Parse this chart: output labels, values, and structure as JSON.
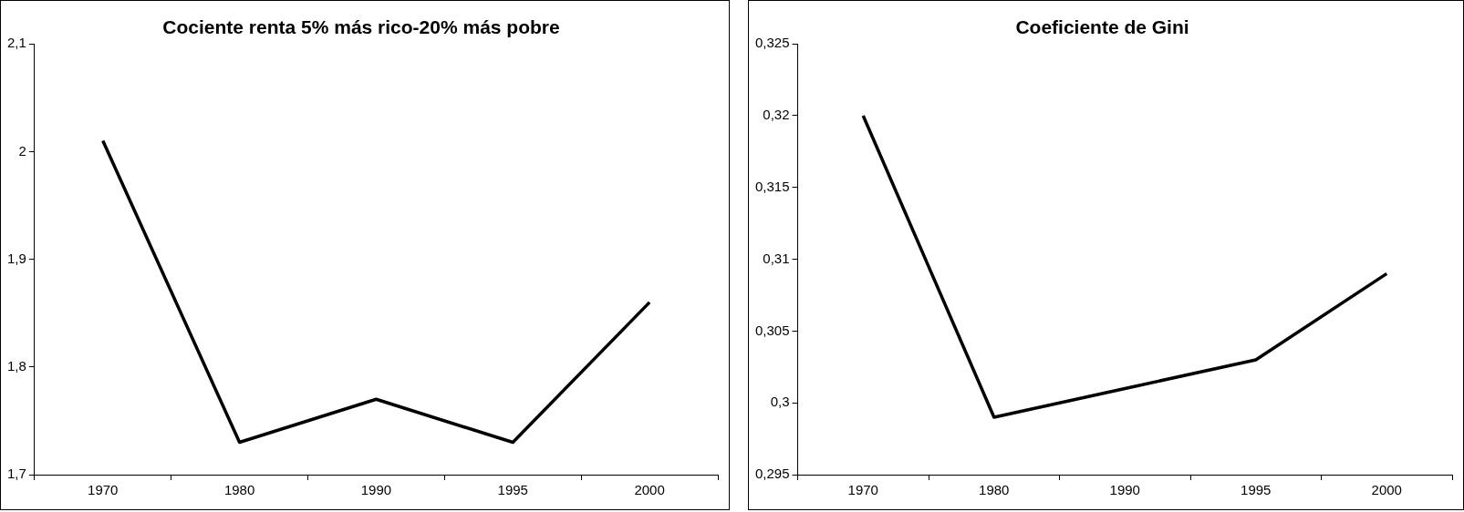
{
  "chart_data": [
    {
      "type": "line",
      "title": "Cociente renta 5% más rico-20% más pobre",
      "categories": [
        "1970",
        "1980",
        "1990",
        "1995",
        "2000"
      ],
      "series": [
        {
          "color": "#000000",
          "values": [
            2.01,
            1.73,
            1.77,
            1.73,
            1.86
          ]
        }
      ],
      "ylim": [
        1.7,
        2.1
      ],
      "yticks": [
        {
          "value": 1.7,
          "label": "1,7"
        },
        {
          "value": 1.8,
          "label": "1,8"
        },
        {
          "value": 1.9,
          "label": "1,9"
        },
        {
          "value": 2,
          "label": "2"
        },
        {
          "value": 2.1,
          "label": "2,1"
        }
      ],
      "grid": false,
      "legend": false,
      "marker": "none",
      "line_style": "solid"
    },
    {
      "type": "line",
      "title": "Coeficiente de Gini",
      "categories": [
        "1970",
        "1980",
        "1990",
        "1995",
        "2000"
      ],
      "series": [
        {
          "color": "#000000",
          "values": [
            0.32,
            0.299,
            0.301,
            0.303,
            0.309
          ]
        }
      ],
      "ylim": [
        0.295,
        0.325
      ],
      "yticks": [
        {
          "value": 0.295,
          "label": "0,295"
        },
        {
          "value": 0.3,
          "label": "0,3"
        },
        {
          "value": 0.305,
          "label": "0,305"
        },
        {
          "value": 0.31,
          "label": "0,31"
        },
        {
          "value": 0.315,
          "label": "0,315"
        },
        {
          "value": 0.32,
          "label": "0,32"
        },
        {
          "value": 0.325,
          "label": "0,325"
        }
      ],
      "grid": false,
      "legend": false,
      "marker": "none",
      "line_style": "solid"
    }
  ]
}
